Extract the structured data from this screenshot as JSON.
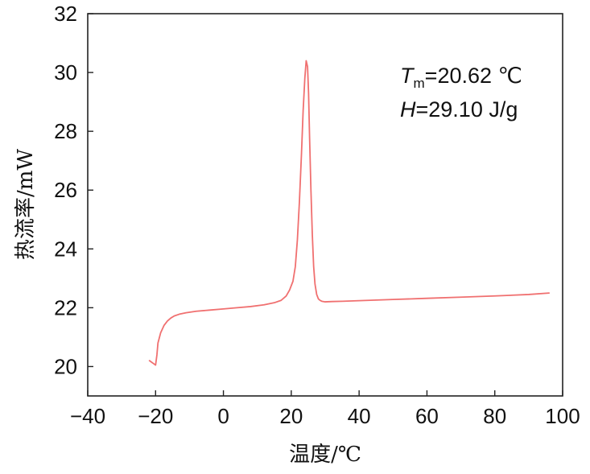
{
  "chart_data": {
    "type": "line",
    "xlabel": "温度/℃",
    "ylabel": "热流率/mW",
    "xlim": [
      -40,
      100
    ],
    "ylim": [
      19,
      32
    ],
    "x_ticks": [
      -40,
      -20,
      0,
      20,
      40,
      60,
      80,
      100
    ],
    "x_tick_labels": [
      "−40",
      "−20",
      "0",
      "20",
      "40",
      "60",
      "80",
      "100"
    ],
    "y_ticks": [
      20,
      22,
      24,
      26,
      28,
      30,
      32
    ],
    "y_tick_labels": [
      "20",
      "22",
      "24",
      "26",
      "28",
      "30",
      "32"
    ],
    "grid": false,
    "line_color": "#f07070",
    "annotations": {
      "tm_symbol": "T",
      "tm_subscript": "m",
      "tm_value": "=20.62 ℃",
      "h_symbol": "H",
      "h_value": "=29.10 J/g"
    },
    "series": [
      {
        "x": [
          -21.8,
          -21.2,
          -20.6,
          -20.0,
          -19.6,
          -19.3,
          -18.5,
          -17.5,
          -16.5,
          -15.5,
          -14.5,
          -13.0,
          -11.0,
          -8.0,
          -4.0,
          0.0,
          4.0,
          8.0,
          12.0,
          15.0,
          17.0,
          18.5,
          19.5,
          20.5,
          21.2,
          21.8,
          22.4,
          23.0,
          23.5,
          24.0,
          24.4,
          24.8,
          25.1,
          25.4,
          25.8,
          26.2,
          26.6,
          27.0,
          27.5,
          28.0,
          28.5,
          29.0,
          30.0,
          32.0,
          35.0,
          40.0,
          50.0,
          60.0,
          70.0,
          80.0,
          90.0,
          96.0
        ],
        "y": [
          20.2,
          20.15,
          20.1,
          20.05,
          20.4,
          20.8,
          21.15,
          21.4,
          21.55,
          21.65,
          21.72,
          21.78,
          21.83,
          21.88,
          21.92,
          21.96,
          22.0,
          22.04,
          22.1,
          22.17,
          22.25,
          22.4,
          22.6,
          22.9,
          23.4,
          24.3,
          25.6,
          27.2,
          28.7,
          29.8,
          30.4,
          30.2,
          29.3,
          27.8,
          26.0,
          24.5,
          23.4,
          22.8,
          22.45,
          22.3,
          22.25,
          22.22,
          22.2,
          22.21,
          22.22,
          22.24,
          22.28,
          22.32,
          22.36,
          22.4,
          22.45,
          22.5
        ]
      }
    ]
  }
}
